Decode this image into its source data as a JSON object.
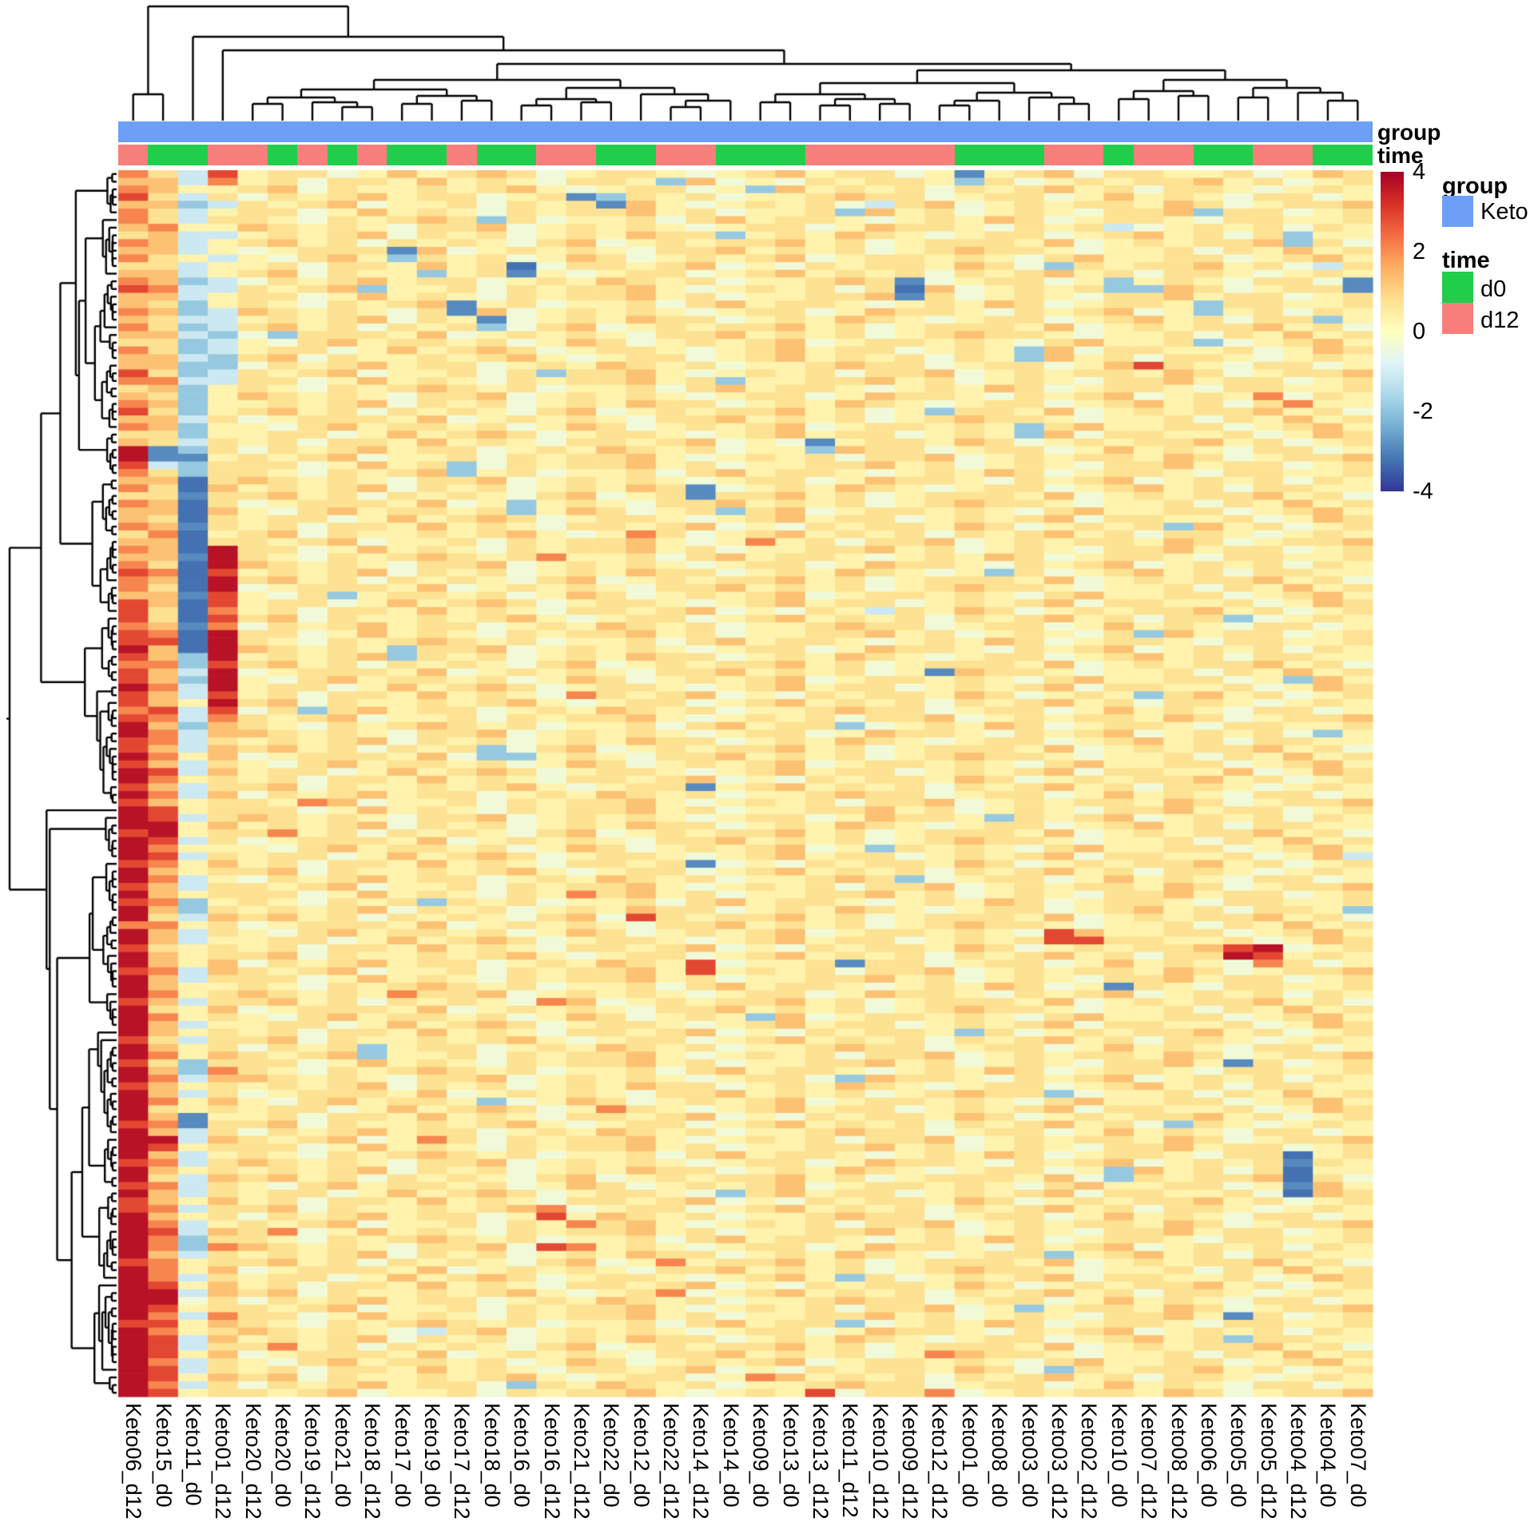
{
  "annotation_rows": {
    "group_label": "group",
    "time_label": "time"
  },
  "legend": {
    "group_title": "group",
    "group_items": [
      {
        "label": "Keto",
        "color": "#6d9ff6"
      }
    ],
    "time_title": "time",
    "time_items": [
      {
        "label": "d0",
        "color": "#21ce4c"
      },
      {
        "label": "d12",
        "color": "#f97f7c"
      }
    ]
  },
  "chart_data": {
    "type": "heatmap",
    "title": "",
    "legend_position": "right",
    "grid": false,
    "columns": [
      "Keto06_d12",
      "Keto15_d0",
      "Keto11_d0",
      "Keto01_d12",
      "Keto20_d12",
      "Keto20_d0",
      "Keto19_d12",
      "Keto21_d0",
      "Keto18_d12",
      "Keto17_d0",
      "Keto19_d0",
      "Keto17_d12",
      "Keto18_d0",
      "Keto16_d0",
      "Keto16_d12",
      "Keto21_d12",
      "Keto22_d0",
      "Keto12_d0",
      "Keto22_d12",
      "Keto14_d12",
      "Keto14_d0",
      "Keto09_d0",
      "Keto13_d0",
      "Keto13_d12",
      "Keto11_d12",
      "Keto10_d12",
      "Keto09_d12",
      "Keto12_d12",
      "Keto01_d0",
      "Keto08_d0",
      "Keto03_d0",
      "Keto03_d12",
      "Keto02_d12",
      "Keto10_d0",
      "Keto07_d12",
      "Keto08_d12",
      "Keto06_d0",
      "Keto05_d0",
      "Keto05_d12",
      "Keto04_d12",
      "Keto04_d0",
      "Keto07_d0"
    ],
    "column_annotations": {
      "group": [
        "Keto",
        "Keto",
        "Keto",
        "Keto",
        "Keto",
        "Keto",
        "Keto",
        "Keto",
        "Keto",
        "Keto",
        "Keto",
        "Keto",
        "Keto",
        "Keto",
        "Keto",
        "Keto",
        "Keto",
        "Keto",
        "Keto",
        "Keto",
        "Keto",
        "Keto",
        "Keto",
        "Keto",
        "Keto",
        "Keto",
        "Keto",
        "Keto",
        "Keto",
        "Keto",
        "Keto",
        "Keto",
        "Keto",
        "Keto",
        "Keto",
        "Keto",
        "Keto",
        "Keto",
        "Keto",
        "Keto",
        "Keto",
        "Keto"
      ],
      "time": [
        "d12",
        "d0",
        "d0",
        "d12",
        "d12",
        "d0",
        "d12",
        "d0",
        "d12",
        "d0",
        "d0",
        "d12",
        "d0",
        "d0",
        "d12",
        "d12",
        "d0",
        "d0",
        "d12",
        "d12",
        "d0",
        "d0",
        "d0",
        "d12",
        "d12",
        "d12",
        "d12",
        "d12",
        "d0",
        "d0",
        "d0",
        "d12",
        "d12",
        "d0",
        "d12",
        "d12",
        "d0",
        "d0",
        "d12",
        "d12",
        "d0",
        "d0"
      ]
    },
    "annotation_colors": {
      "group_Keto": "#6d9ff6",
      "time_d0": "#21ce4c",
      "time_d12": "#f97f7c"
    },
    "colorbar": {
      "ticks": [
        "4",
        "2",
        "0",
        "-2",
        "-4"
      ],
      "range": [
        -4,
        4
      ]
    },
    "colorscale_stops": [
      [
        -4,
        "#313695"
      ],
      [
        -3.2,
        "#4575b4"
      ],
      [
        -2.4,
        "#74add1"
      ],
      [
        -1.6,
        "#abd9e9"
      ],
      [
        -0.8,
        "#e0f3f8"
      ],
      [
        0,
        "#ffffbf"
      ],
      [
        0.8,
        "#fee090"
      ],
      [
        1.6,
        "#fdae61"
      ],
      [
        2.4,
        "#f46d43"
      ],
      [
        3.2,
        "#d73027"
      ],
      [
        4,
        "#a50026"
      ]
    ],
    "n_rows": 160,
    "value_bins": {
      "a": -3.25,
      "b": -2.9,
      "c": -1.9,
      "d": -1.1,
      "n": -0.35,
      "e": 0.3,
      "f": 0.75,
      "g": 1.3,
      "h": 2.1,
      "i": 2.9,
      "j": 3.7
    },
    "col0": "hghighhgfhghfghigghghgfhggihfghighfgjjihghfhgghfghghihhgiiihiijihiijiihijjiijijjijijjjijjjijjijijjhjjijjijjjijjjjijjijjijjjjijjjjijjijiijjjjjjijjjjjjjijjjjjjjjj",
    "col1": "fggfgffhgggffgghgfgffgffggfhgfgfggffbbdfgffggfghgggfhgfggffghigghgghggihghhghgihghgiijjihihghgghgfhggfgghgghgfhggfghfghgghfghgjighgfhgghghihhghhhijjihihiiihiihi",
    "col2": "ddedcddedddeddcddccdcdccdccdccccdccdcbccaabaaabaaabaaaabaaabaaaccdcddeddcdddeddeddeedeededeeddeccdeddeeeddeedeededeeccdedeebbddedded ddededdccdeedednedeeddedded",
    "col3": "ihefdefedeedeeddeedddcddccddeeeefeeffefffgffgffefjjjijjiihihjjjjijjjijihggfggfgffgfffgffefgfeffefgffeffggfeffgfefffgfhgffgfeffgfeffgffgffegfhffgfggffhgfgfgffgff",
    "bg_templates": {
      "T1": "effnegefgfneffenefgeffnefefgnffeefnegf",
      "T2": "fenfefgfefneefnfgeffenefegfneffenffeef",
      "T3": "nfefgeffnefegfefneefgffneffnegefenffne",
      "T4": "fgefnfefenfgnefeffgefnefffegnefeffgefn",
      "T5": "efnffegefenffefgnenfeffegfnefeffgefnef",
      "T6": "gfefenffgnefefeneffnegffenfefgnefefnfe",
      "T7": "fefgneefnfeffgenefefnffgnefeffegfneffg",
      "T8": "nefffegnefefenffgefefnefgffeneefnfegef",
      "T9": "fgnfeefefgeneffnefgefefnfefgefnffenefe",
      "T10": "efefgnfefnefegffnefegfeneffnefgefnffee",
      "T11": "ffnegefenfeffgefneeffgefnefenffgeffnef",
      "T12": "enfgeffefnegfnefefgneffefenfgeeffnefge"
    },
    "bg_row_keys": [
      "T1",
      "T5",
      "T9",
      "T3",
      "T7",
      "T11",
      "T2",
      "T6",
      "T10",
      "T4",
      "T8",
      "T12",
      "T5",
      "T9",
      "T3",
      "T7",
      "T11",
      "T2",
      "T6",
      "T10",
      "T4",
      "T8",
      "T12",
      "T1",
      "T9",
      "T3",
      "T7",
      "T11",
      "T2",
      "T6",
      "T10",
      "T4",
      "T8",
      "T12",
      "T1",
      "T5",
      "T3",
      "T7",
      "T11",
      "T2",
      "T6",
      "T10",
      "T4",
      "T8",
      "T12",
      "T1",
      "T5",
      "T9",
      "T7",
      "T11",
      "T2",
      "T6",
      "T10",
      "T4",
      "T8",
      "T12",
      "T1",
      "T5",
      "T9",
      "T3",
      "T11",
      "T2",
      "T6",
      "T10",
      "T4",
      "T8",
      "T12",
      "T1",
      "T5",
      "T9",
      "T3",
      "T7",
      "T2",
      "T6",
      "T10",
      "T4",
      "T8",
      "T12",
      "T1",
      "T5",
      "T9",
      "T3",
      "T7",
      "T11",
      "T6",
      "T10",
      "T4",
      "T8",
      "T12",
      "T1",
      "T5",
      "T9",
      "T3",
      "T7",
      "T11",
      "T2",
      "T10",
      "T4",
      "T8",
      "T12",
      "T1",
      "T5",
      "T9",
      "T3",
      "T7",
      "T11",
      "T2",
      "T6",
      "T4",
      "T8",
      "T12",
      "T1",
      "T5",
      "T9",
      "T3",
      "T7",
      "T11",
      "T2",
      "T6",
      "T10",
      "T8",
      "T12",
      "T1",
      "T5",
      "T9",
      "T3",
      "T7",
      "T11",
      "T2",
      "T6",
      "T10",
      "T4",
      "T12",
      "T1",
      "T5",
      "T9",
      "T3",
      "T7",
      "T11",
      "T2",
      "T6",
      "T10",
      "T4",
      "T8",
      "T1",
      "T5",
      "T9",
      "T3",
      "T7",
      "T11",
      "T2",
      "T6",
      "T10",
      "T4",
      "T8",
      "T12",
      "T5",
      "T9",
      "T3",
      "T7"
    ],
    "features": [
      [
        0,
        28,
        "b"
      ],
      [
        1,
        18,
        "c"
      ],
      [
        1,
        28,
        "c"
      ],
      [
        2,
        21,
        "c"
      ],
      [
        3,
        15,
        "b"
      ],
      [
        3,
        16,
        "c"
      ],
      [
        4,
        16,
        "b"
      ],
      [
        4,
        25,
        "d"
      ],
      [
        5,
        24,
        "c"
      ],
      [
        5,
        36,
        "c"
      ],
      [
        6,
        12,
        "c"
      ],
      [
        7,
        33,
        "d"
      ],
      [
        8,
        20,
        "c"
      ],
      [
        8,
        39,
        "c"
      ],
      [
        9,
        39,
        "c"
      ],
      [
        10,
        9,
        "b"
      ],
      [
        11,
        9,
        "c"
      ],
      [
        12,
        13,
        "a"
      ],
      [
        12,
        31,
        "c"
      ],
      [
        12,
        40,
        "d"
      ],
      [
        13,
        10,
        "c"
      ],
      [
        13,
        13,
        "b"
      ],
      [
        14,
        26,
        "b"
      ],
      [
        14,
        33,
        "c"
      ],
      [
        14,
        41,
        "b"
      ],
      [
        15,
        8,
        "c"
      ],
      [
        15,
        26,
        "a"
      ],
      [
        15,
        33,
        "c"
      ],
      [
        15,
        34,
        "c"
      ],
      [
        15,
        41,
        "b"
      ],
      [
        16,
        26,
        "b"
      ],
      [
        17,
        11,
        "b"
      ],
      [
        17,
        36,
        "c"
      ],
      [
        18,
        11,
        "b"
      ],
      [
        18,
        36,
        "c"
      ],
      [
        19,
        12,
        "b"
      ],
      [
        19,
        40,
        "c"
      ],
      [
        20,
        12,
        "c"
      ],
      [
        21,
        5,
        "c"
      ],
      [
        22,
        36,
        "c"
      ],
      [
        23,
        30,
        "c"
      ],
      [
        23,
        40,
        "g"
      ],
      [
        24,
        30,
        "c"
      ],
      [
        25,
        34,
        "i"
      ],
      [
        26,
        14,
        "c"
      ],
      [
        27,
        20,
        "c"
      ],
      [
        29,
        38,
        "h"
      ],
      [
        30,
        39,
        "h"
      ],
      [
        31,
        27,
        "c"
      ],
      [
        33,
        30,
        "c"
      ],
      [
        34,
        30,
        "c"
      ],
      [
        35,
        23,
        "b"
      ],
      [
        36,
        23,
        "c"
      ],
      [
        38,
        11,
        "c"
      ],
      [
        39,
        11,
        "c"
      ],
      [
        41,
        19,
        "b"
      ],
      [
        42,
        19,
        "b"
      ],
      [
        43,
        13,
        "c"
      ],
      [
        44,
        13,
        "c"
      ],
      [
        44,
        20,
        "c"
      ],
      [
        46,
        35,
        "c"
      ],
      [
        47,
        17,
        "h"
      ],
      [
        48,
        21,
        "h"
      ],
      [
        50,
        14,
        "h"
      ],
      [
        52,
        29,
        "c"
      ],
      [
        55,
        7,
        "c"
      ],
      [
        57,
        25,
        "d"
      ],
      [
        58,
        37,
        "c"
      ],
      [
        60,
        34,
        "c"
      ],
      [
        62,
        9,
        "c"
      ],
      [
        63,
        9,
        "c"
      ],
      [
        65,
        27,
        "b"
      ],
      [
        66,
        39,
        "c"
      ],
      [
        68,
        15,
        "h"
      ],
      [
        68,
        34,
        "c"
      ],
      [
        70,
        6,
        "c"
      ],
      [
        72,
        24,
        "c"
      ],
      [
        73,
        40,
        "c"
      ],
      [
        75,
        12,
        "c"
      ],
      [
        76,
        12,
        "c"
      ],
      [
        76,
        13,
        "c"
      ],
      [
        78,
        37,
        "g"
      ],
      [
        80,
        19,
        "b"
      ],
      [
        82,
        6,
        "h"
      ],
      [
        84,
        29,
        "c"
      ],
      [
        86,
        5,
        "h"
      ],
      [
        88,
        25,
        "c"
      ],
      [
        89,
        41,
        "d"
      ],
      [
        90,
        19,
        "b"
      ],
      [
        92,
        26,
        "c"
      ],
      [
        94,
        15,
        "h"
      ],
      [
        95,
        10,
        "c"
      ],
      [
        96,
        41,
        "c"
      ],
      [
        97,
        17,
        "i"
      ],
      [
        99,
        31,
        "i"
      ],
      [
        100,
        31,
        "i"
      ],
      [
        100,
        32,
        "i"
      ],
      [
        101,
        37,
        "i"
      ],
      [
        101,
        38,
        "j"
      ],
      [
        102,
        37,
        "j"
      ],
      [
        102,
        38,
        "i"
      ],
      [
        103,
        19,
        "i"
      ],
      [
        103,
        24,
        "b"
      ],
      [
        103,
        38,
        "h"
      ],
      [
        104,
        19,
        "i"
      ],
      [
        106,
        33,
        "b"
      ],
      [
        107,
        9,
        "h"
      ],
      [
        108,
        14,
        "h"
      ],
      [
        110,
        21,
        "c"
      ],
      [
        112,
        28,
        "c"
      ],
      [
        114,
        8,
        "c"
      ],
      [
        115,
        8,
        "c"
      ],
      [
        116,
        37,
        "b"
      ],
      [
        118,
        24,
        "c"
      ],
      [
        120,
        31,
        "c"
      ],
      [
        121,
        12,
        "c"
      ],
      [
        122,
        16,
        "h"
      ],
      [
        124,
        35,
        "c"
      ],
      [
        126,
        10,
        "h"
      ],
      [
        128,
        39,
        "a"
      ],
      [
        129,
        39,
        "b"
      ],
      [
        130,
        33,
        "c"
      ],
      [
        130,
        39,
        "a"
      ],
      [
        131,
        33,
        "c"
      ],
      [
        131,
        39,
        "a"
      ],
      [
        132,
        39,
        "b"
      ],
      [
        133,
        20,
        "c"
      ],
      [
        133,
        39,
        "a"
      ],
      [
        135,
        14,
        "h"
      ],
      [
        136,
        14,
        "i"
      ],
      [
        137,
        15,
        "h"
      ],
      [
        138,
        5,
        "h"
      ],
      [
        140,
        14,
        "i"
      ],
      [
        140,
        15,
        "h"
      ],
      [
        141,
        31,
        "c"
      ],
      [
        142,
        18,
        "h"
      ],
      [
        144,
        24,
        "c"
      ],
      [
        146,
        18,
        "h"
      ],
      [
        148,
        30,
        "c"
      ],
      [
        149,
        37,
        "b"
      ],
      [
        150,
        24,
        "c"
      ],
      [
        151,
        10,
        "d"
      ],
      [
        152,
        37,
        "c"
      ],
      [
        153,
        5,
        "h"
      ],
      [
        154,
        27,
        "h"
      ],
      [
        156,
        31,
        "c"
      ],
      [
        157,
        21,
        "h"
      ],
      [
        158,
        13,
        "c"
      ],
      [
        159,
        23,
        "i"
      ],
      [
        159,
        27,
        "h"
      ]
    ],
    "col_tree": [
      8,
      [
        118,
        0,
        1
      ],
      [
        46,
        2,
        [
          63,
          3,
          [
            80,
            [
              100,
              [
                112,
                [
                  122,
                  [
                    130,
                    4,
                    5
                  ],
                  [
                    128,
                    6,
                    [
                      134,
                      7,
                      8
                    ]
                  ]
                ],
                [
                  120,
                  [
                    130,
                    9,
                    10
                  ],
                  [
                    126,
                    11,
                    12
                  ]
                ]
              ],
              [
                110,
                [
                  124,
                  [
                    132,
                    13,
                    14
                  ],
                  [
                    128,
                    15,
                    16
                  ]
                ],
                [
                  118,
                  17,
                  [
                    126,
                    [
                      134,
                      18,
                      19
                    ],
                    20
                  ]
                ]
              ]
            ],
            [
              88,
              [
                104,
                [
                  118,
                  [
                    128,
                    21,
                    22
                  ],
                  [
                    124,
                    [
                      132,
                      23,
                      24
                    ],
                    [
                      130,
                      25,
                      26
                    ]
                  ]
                ],
                [
                  116,
                  [
                    126,
                    [
                      132,
                      27,
                      28
                    ],
                    29
                  ],
                  [
                    122,
                    30,
                    [
                      130,
                      31,
                      32
                    ]
                  ]
                ]
              ],
              [
                100,
                [
                  114,
                  [
                    124,
                    33,
                    34
                  ],
                  [
                    120,
                    35,
                    36
                  ]
                ],
                [
                  110,
                  [
                    122,
                    37,
                    38
                  ],
                  [
                    116,
                    39,
                    [
                      126,
                      40,
                      41
                    ]
                  ]
                ]
              ]
            ]
          ]
        ]
      ]
    ]
  }
}
